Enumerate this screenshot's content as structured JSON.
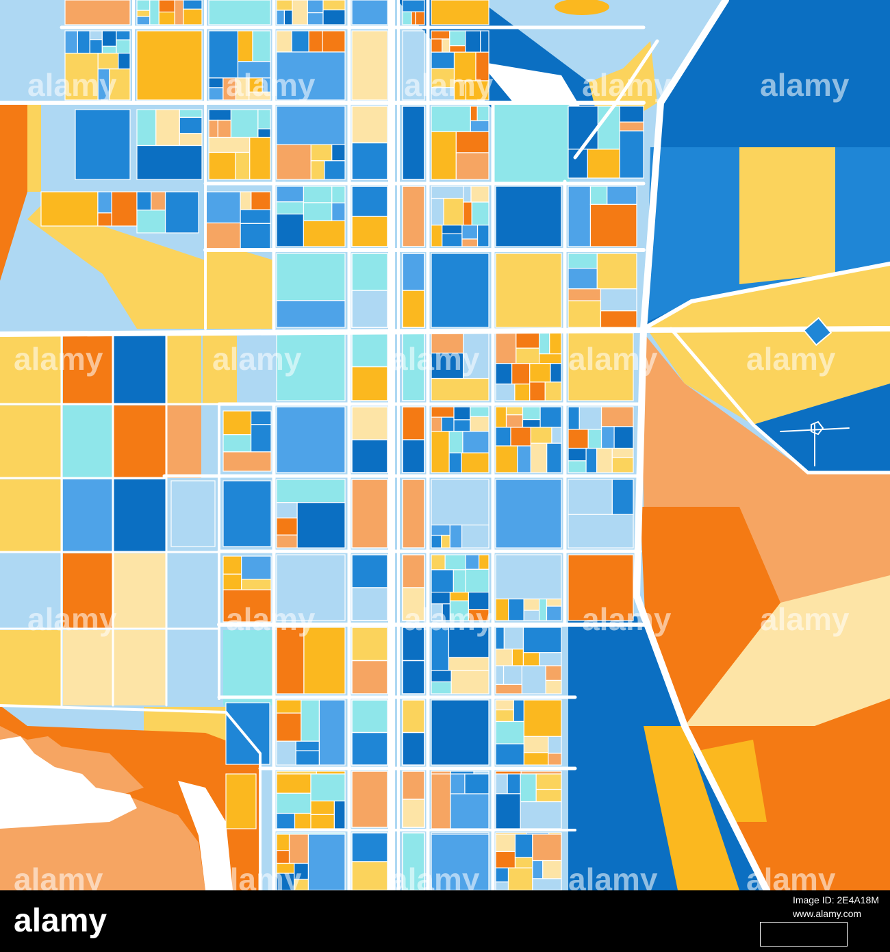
{
  "palette": {
    "deep_blue": "#0b6fc2",
    "blue": "#1f86d6",
    "mid_blue": "#4ea3e8",
    "light_blue": "#aed8f3",
    "cyan": "#8fe6ea",
    "pale_yellow": "#fde4a6",
    "yellow": "#fbd35c",
    "gold": "#fbb81f",
    "light_orange": "#f6a562",
    "orange": "#f47a14",
    "road": "#ffffff",
    "footer_bg": "#000000"
  },
  "watermark": {
    "text": "alamy"
  },
  "footer": {
    "brand": "alamy",
    "image_id_label": "Image ID: 2E4A18M",
    "site": "www.alamy.com"
  }
}
